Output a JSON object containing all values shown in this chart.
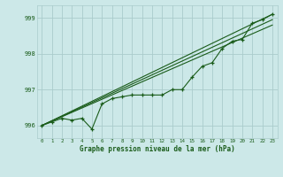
{
  "xlabel": "Graphe pression niveau de la mer (hPa)",
  "bg_color": "#cce8e8",
  "grid_color": "#aacccc",
  "line_color": "#1a5c1a",
  "ylim": [
    995.65,
    999.35
  ],
  "xlim": [
    -0.5,
    23.5
  ],
  "yticks": [
    996,
    997,
    998,
    999
  ],
  "xticks": [
    0,
    1,
    2,
    3,
    4,
    5,
    6,
    7,
    8,
    9,
    10,
    11,
    12,
    13,
    14,
    15,
    16,
    17,
    18,
    19,
    20,
    21,
    22,
    23
  ],
  "main_series": [
    996.0,
    996.1,
    996.2,
    996.15,
    996.2,
    995.9,
    996.6,
    996.75,
    996.8,
    996.85,
    996.85,
    996.85,
    996.85,
    997.0,
    997.0,
    997.35,
    997.65,
    997.75,
    998.15,
    998.35,
    998.4,
    998.85,
    998.95,
    999.1
  ]
}
